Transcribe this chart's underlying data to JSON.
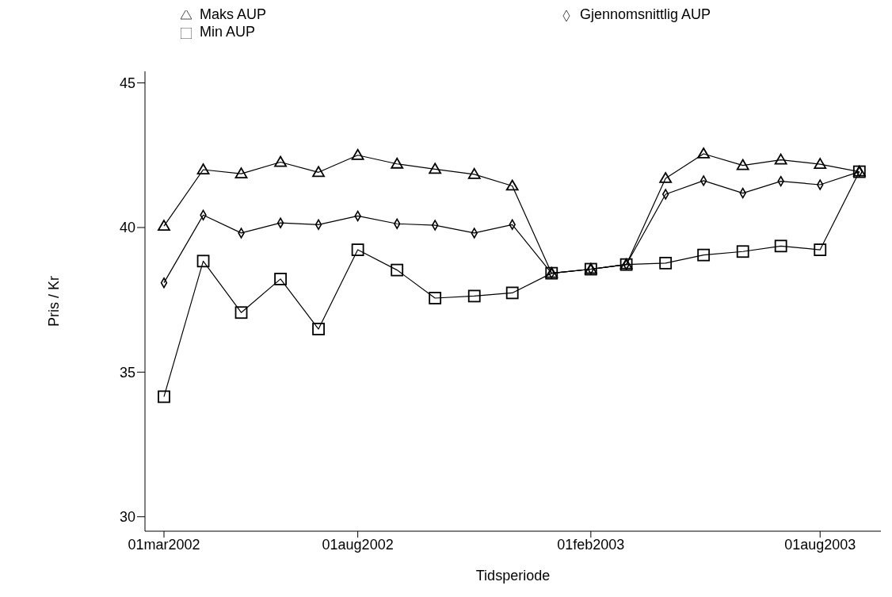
{
  "chart_data": {
    "type": "line",
    "xlabel": "Tidsperiode",
    "ylabel": "Pris / Kr",
    "legend": "top",
    "line_style": "solid",
    "x": [
      "2002-03",
      "2002-04",
      "2002-05",
      "2002-06",
      "2002-07",
      "2002-08",
      "2002-09",
      "2002-10",
      "2002-11",
      "2002-12",
      "2003-01",
      "2003-02",
      "2003-03",
      "2003-04",
      "2003-05",
      "2003-06",
      "2003-07",
      "2003-08",
      "2003-09"
    ],
    "xlim": [
      "2002-02-14",
      "2003-09-18"
    ],
    "xticks": [
      {
        "value": "2002-03-01",
        "label": "01mar2002"
      },
      {
        "value": "2002-08-01",
        "label": "01aug2002"
      },
      {
        "value": "2003-02-01",
        "label": "01feb2003"
      },
      {
        "value": "2003-08-01",
        "label": "01aug2003"
      }
    ],
    "ylim": [
      29.5,
      45.4
    ],
    "yticks": [
      30,
      35,
      40,
      45
    ],
    "series": [
      {
        "name": "Maks AUP",
        "color": "#000000",
        "marker": "triangle",
        "values": [
          40.05,
          42.0,
          41.86,
          42.26,
          41.91,
          42.5,
          42.2,
          42.02,
          41.84,
          41.44,
          38.42,
          38.56,
          38.72,
          41.7,
          42.55,
          42.15,
          42.34,
          42.19,
          41.93
        ]
      },
      {
        "name": "Gjennomsnittlig AUP",
        "color": "#000000",
        "marker": "diamond",
        "values": [
          38.09,
          40.43,
          39.81,
          40.16,
          40.1,
          40.4,
          40.13,
          40.08,
          39.81,
          40.1,
          38.42,
          38.56,
          38.72,
          41.15,
          41.62,
          41.19,
          41.6,
          41.48,
          41.93
        ]
      },
      {
        "name": "Min AUP",
        "color": "#000000",
        "marker": "square",
        "values": [
          34.15,
          38.84,
          37.06,
          38.22,
          36.49,
          39.23,
          38.53,
          37.56,
          37.63,
          37.74,
          38.42,
          38.56,
          38.72,
          38.77,
          39.05,
          39.17,
          39.36,
          39.23,
          41.93
        ]
      }
    ]
  }
}
